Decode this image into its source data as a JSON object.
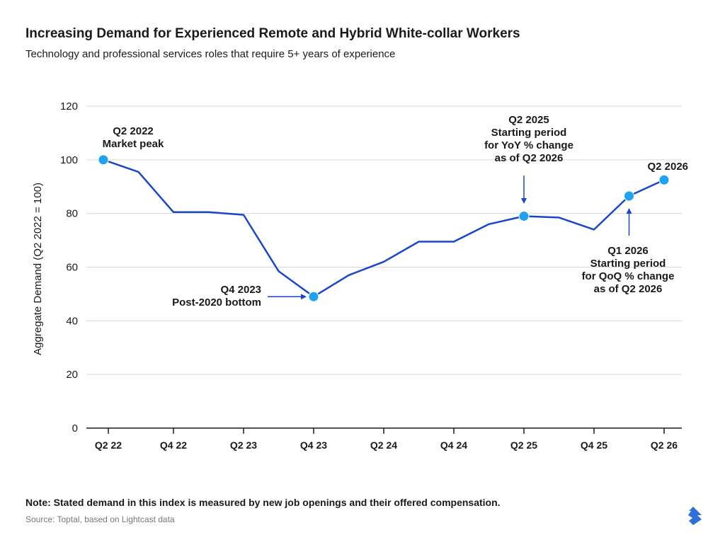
{
  "title": "Increasing Demand for Experienced Remote and Hybrid White-collar Workers",
  "subtitle": "Technology and professional services roles that require 5+ years of experience",
  "note": "Note: Stated demand in this index is measured by new job openings and their offered compensation.",
  "source": "Source: Toptal, based on Lightcast data",
  "logo_icon": "toptal-logo-icon",
  "colors": {
    "line": "#1a47c9",
    "marker": "#1fa3f0",
    "grid": "#d9d9d9",
    "axis": "#1a1a1a",
    "logo": "#2f6fdc"
  },
  "chart_data": {
    "type": "line",
    "xlabel": "",
    "ylabel": "Aggregate Demand (Q2 2022 = 100)",
    "ylim": [
      0,
      120
    ],
    "yticks": [
      0,
      20,
      40,
      60,
      80,
      100,
      120
    ],
    "grid": true,
    "x": [
      "Q2 22",
      "Q3 22",
      "Q4 22",
      "Q1 23",
      "Q2 23",
      "Q3 23",
      "Q4 23",
      "Q1 24",
      "Q2 24",
      "Q3 24",
      "Q4 24",
      "Q1 25",
      "Q2 25",
      "Q3 25",
      "Q4 25",
      "Q1 26",
      "Q2 26"
    ],
    "xtick_labels": [
      "Q2 22",
      "Q4 22",
      "Q2 23",
      "Q4 23",
      "Q2 24",
      "Q4 24",
      "Q2 25",
      "Q4 25",
      "Q2 26"
    ],
    "series": [
      {
        "values": [
          100,
          95.5,
          80.5,
          80.5,
          79.5,
          58.5,
          49,
          57,
          62,
          69.5,
          69.5,
          76,
          79,
          78.5,
          74,
          86.5,
          92.5
        ]
      }
    ],
    "highlighted_points": [
      {
        "x": "Q2 22",
        "y": 100
      },
      {
        "x": "Q4 23",
        "y": 49
      },
      {
        "x": "Q2 25",
        "y": 79
      },
      {
        "x": "Q1 26",
        "y": 86.5
      },
      {
        "x": "Q2 26",
        "y": 92.5
      }
    ],
    "annotations": [
      {
        "x": "Q2 22",
        "lines": [
          "Q2 2022",
          "Market peak"
        ]
      },
      {
        "x": "Q4 23",
        "lines": [
          "Q4 2023",
          "Post-2020 bottom"
        ]
      },
      {
        "x": "Q2 25",
        "lines": [
          "Q2 2025",
          "Starting period",
          "for YoY % change",
          "as of Q2 2026"
        ]
      },
      {
        "x": "Q2 26",
        "lines": [
          "Q2 2026"
        ]
      },
      {
        "x": "Q1 26",
        "lines": [
          "Q1 2026",
          "Starting period",
          "for QoQ % change",
          "as of Q2 2026"
        ]
      }
    ]
  }
}
